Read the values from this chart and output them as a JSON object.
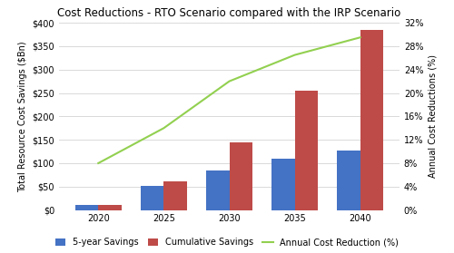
{
  "title": "Cost Reductions - RTO Scenario compared with the IRP Scenario",
  "categories": [
    2020,
    2025,
    2030,
    2035,
    2040
  ],
  "five_year_savings": [
    10,
    52,
    84,
    110,
    128
  ],
  "cumulative_savings": [
    10,
    62,
    145,
    255,
    385
  ],
  "annual_cost_reduction_pct": [
    8,
    14,
    22,
    26.5,
    29.5
  ],
  "bar_width": 0.35,
  "ylim_left": [
    0,
    400
  ],
  "ylim_right": [
    0,
    32
  ],
  "yticks_left": [
    0,
    50,
    100,
    150,
    200,
    250,
    300,
    350,
    400
  ],
  "yticks_right": [
    0,
    4,
    8,
    12,
    16,
    20,
    24,
    28,
    32
  ],
  "color_blue": "#4472C4",
  "color_red": "#BE4B48",
  "color_line": "#92D050",
  "bg_color": "#FFFFFF",
  "plot_bg_color": "#FFFFFF",
  "grid_color": "#D9D9D9",
  "ylabel_left": "Total Resource Cost Savings ($Bn)",
  "ylabel_right": "Annual Cost Reductions (%)",
  "legend_labels": [
    "5-year Savings",
    "Cumulative Savings",
    "Annual Cost Reduction (%)"
  ],
  "title_fontsize": 8.5,
  "label_fontsize": 7,
  "tick_fontsize": 7,
  "legend_fontsize": 7
}
